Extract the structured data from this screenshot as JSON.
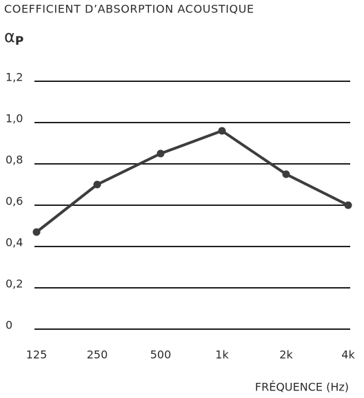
{
  "chart_data": {
    "type": "line",
    "title": "COEFFICIENT D’ABSORPTION ACOUSTIQUE",
    "ylabel": {
      "symbol": "α",
      "subscript": "P"
    },
    "xlabel": "FRÉQUENCE (Hz)",
    "categories": [
      "125",
      "250",
      "500",
      "1k",
      "2k",
      "4k"
    ],
    "values": [
      0.47,
      0.7,
      0.85,
      0.96,
      0.75,
      0.6
    ],
    "color": "#3d3d3d",
    "ylim": [
      0,
      1.2
    ],
    "yticks": [
      0,
      {
        "value": 0.2,
        "label": "0,2"
      },
      {
        "value": 0.4,
        "label": "0,4"
      },
      {
        "value": 0.6,
        "label": "0,6"
      },
      {
        "value": 0.8,
        "label": "0,8"
      },
      {
        "value": 1.0,
        "label": "1,0"
      },
      {
        "value": 1.2,
        "label": "1,2"
      }
    ],
    "grid": true
  }
}
